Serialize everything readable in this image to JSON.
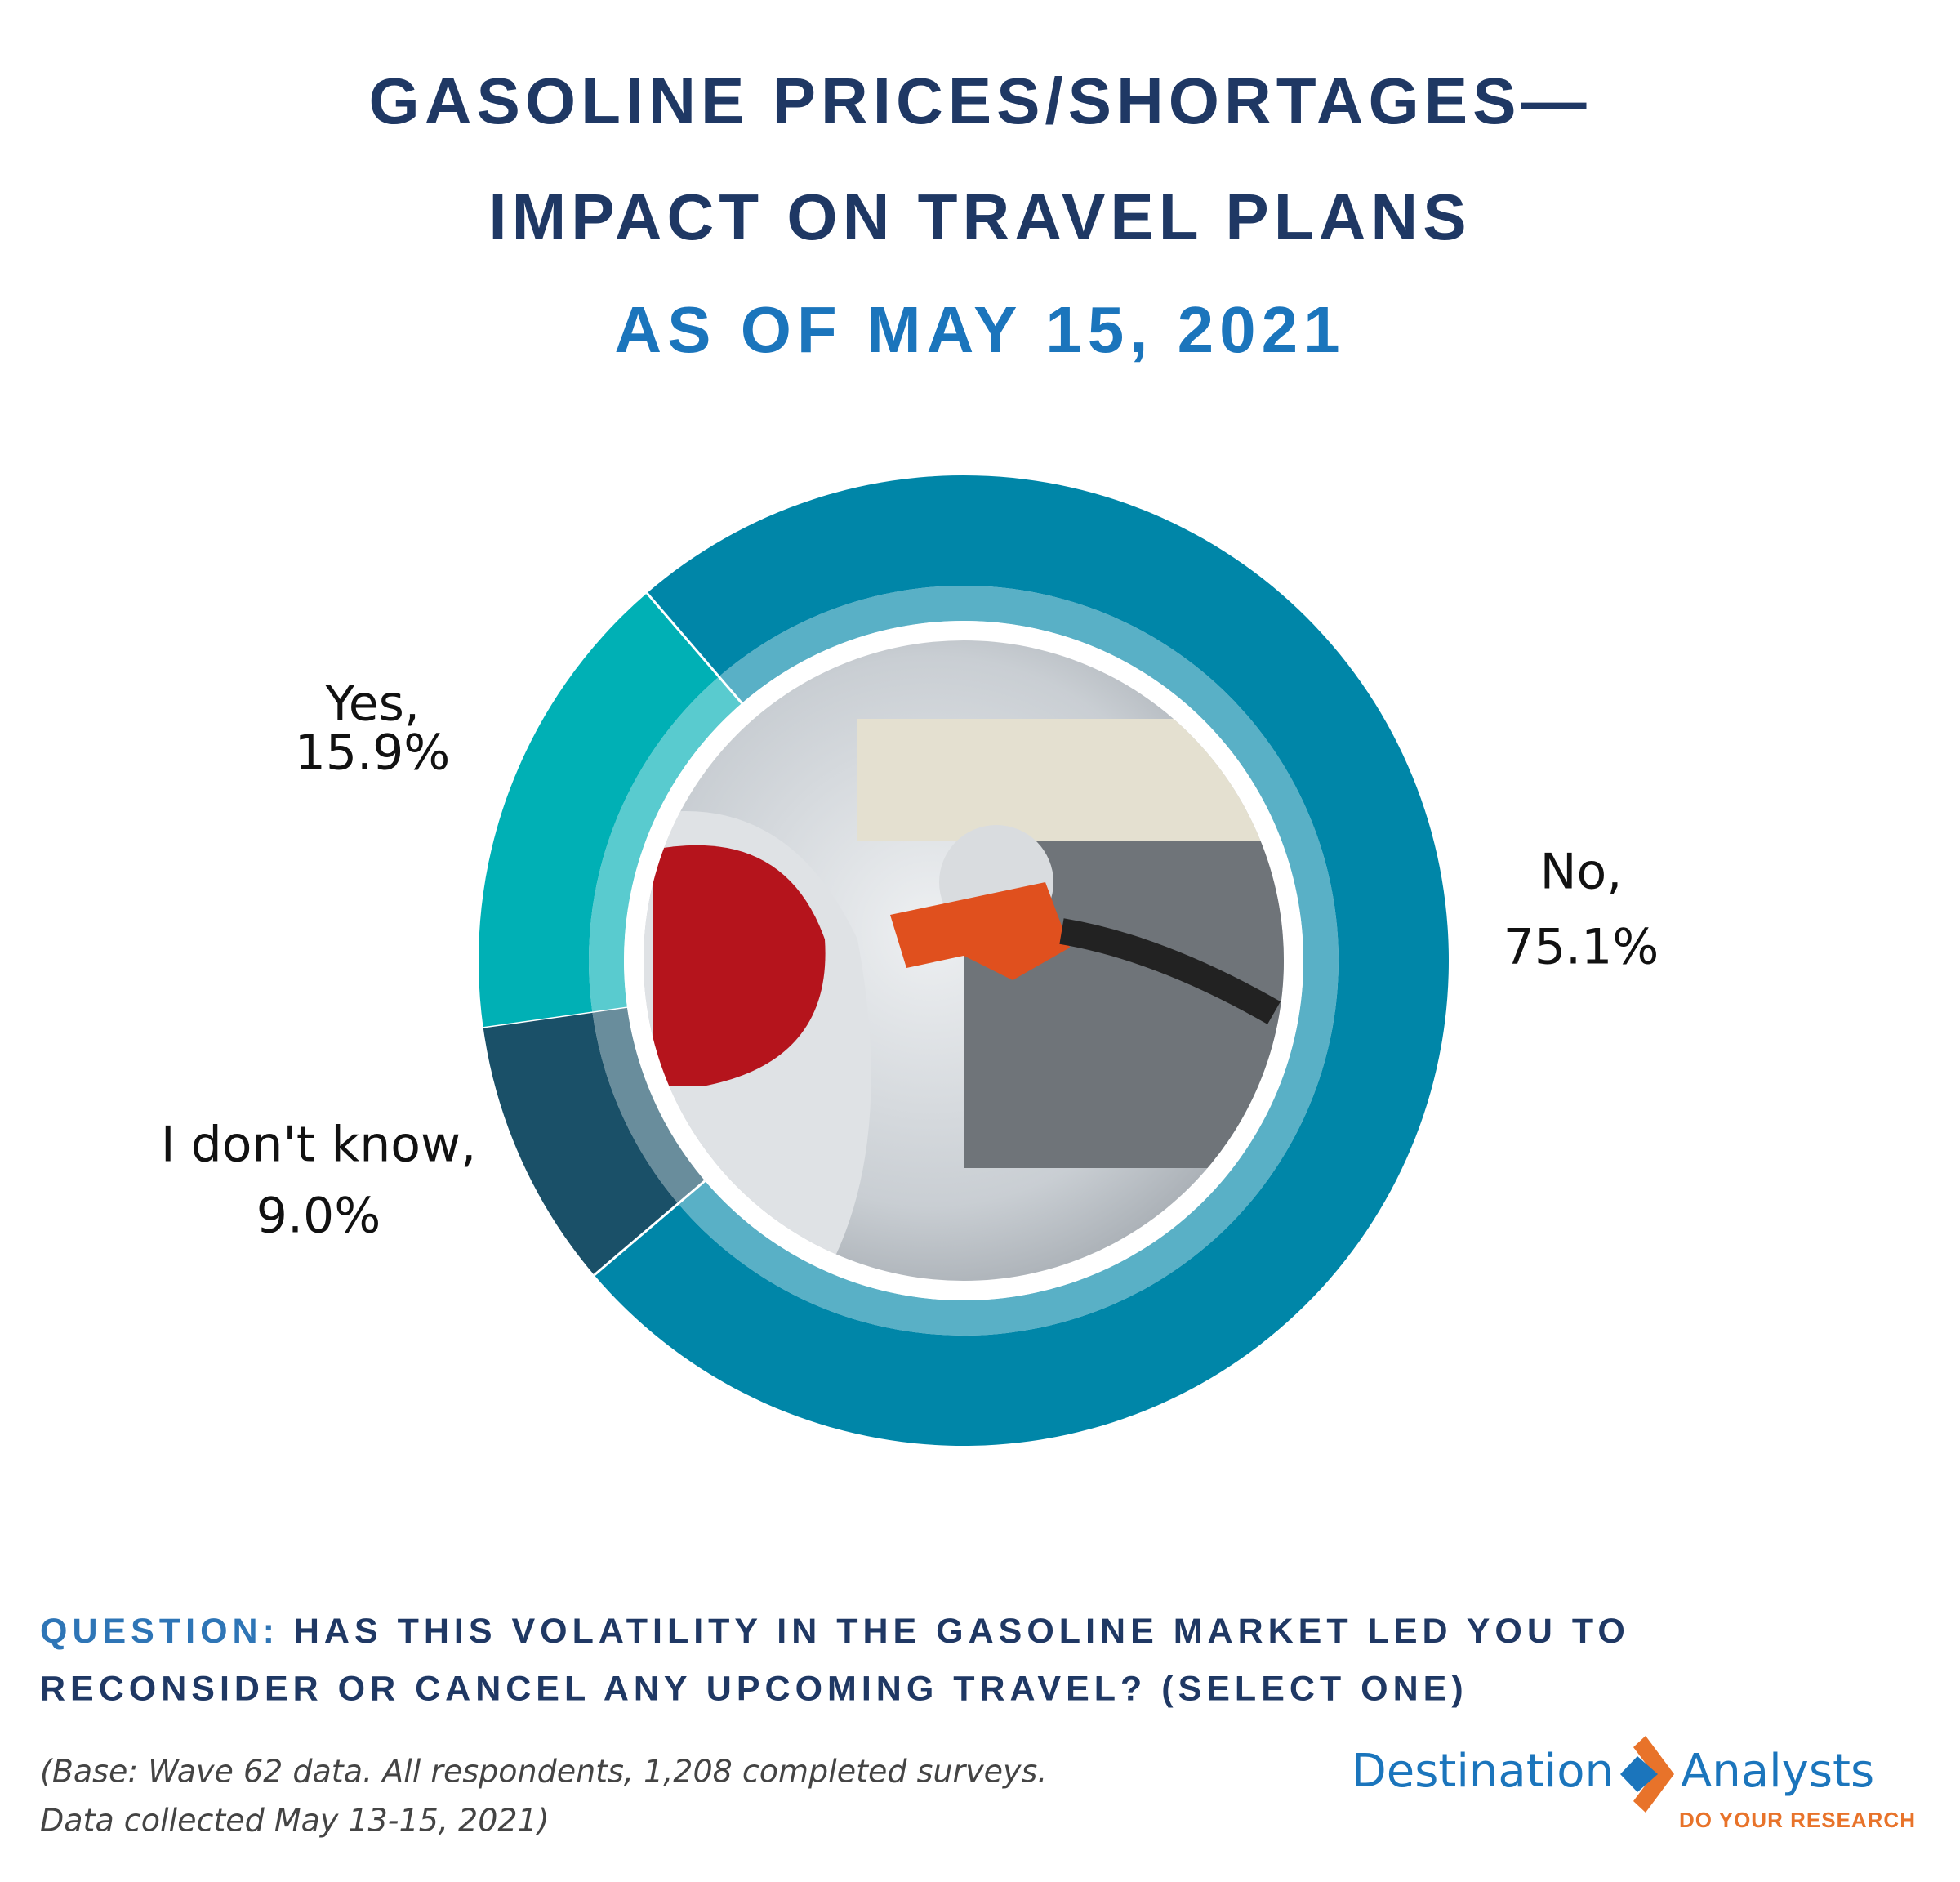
{
  "chart_data": {
    "type": "pie",
    "title_lines": [
      "GASOLINE PRICES/SHORTAGES—",
      "IMPACT ON TRAVEL PLANS"
    ],
    "subtitle": "AS OF MAY 15, 2021",
    "categories": [
      "Yes,",
      "No,",
      "I don't know,"
    ],
    "values": [
      15.9,
      75.1,
      9.0
    ],
    "value_labels": [
      "15.9%",
      "75.1%",
      "9.0%"
    ],
    "colors": [
      "#00b0b5",
      "#0086a8",
      "#1a5068"
    ],
    "donut": true
  },
  "question": {
    "lead": "QUESTION:",
    "lines": [
      "HAS THIS VOLATILITY IN THE GASOLINE MARKET LED YOU TO",
      "RECONSIDER OR CANCEL ANY UPCOMING TRAVEL? (SELECT ONE)"
    ]
  },
  "note": [
    "(Base: Wave 62 data. All respondents, 1,208 completed surveys.",
    "Data collected May 13-15, 2021)"
  ],
  "logo": {
    "left": "Destination",
    "right": "Analysts",
    "tagline": "DO YOUR RESEARCH"
  }
}
